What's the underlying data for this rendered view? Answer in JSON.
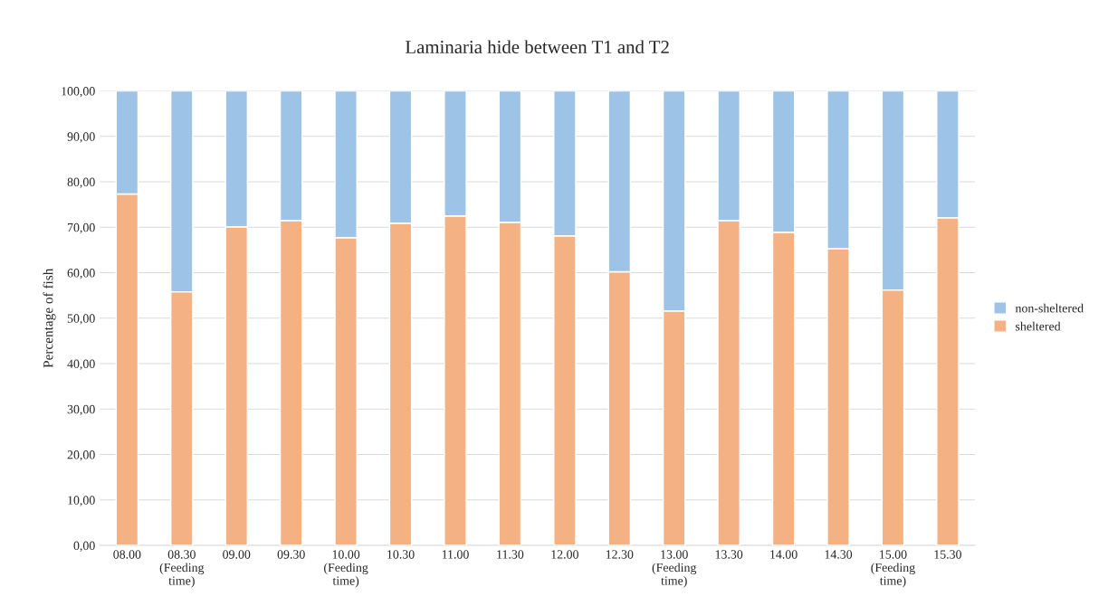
{
  "chart_data": {
    "type": "bar",
    "title": "Laminaria hide between T1 and T2",
    "ylabel": "Percentage of fish",
    "categories": [
      "08.00",
      "08.30\n(Feeding\ntime)",
      "09.00",
      "09.30",
      "10.00\n(Feeding\ntime)",
      "10.30",
      "11.00",
      "11.30",
      "12.00",
      "12.30",
      "13.00\n(Feeding\ntime)",
      "13.30",
      "14.00",
      "14.30",
      "15.00\n(Feeding\ntime)",
      "15.30"
    ],
    "series": [
      {
        "name": "sheltered",
        "color": "#f4b183",
        "values": [
          77.3,
          55.8,
          70.1,
          71.5,
          67.7,
          70.9,
          72.5,
          71.1,
          68.1,
          60.2,
          51.6,
          71.5,
          68.9,
          65.3,
          56.2,
          72.1
        ]
      },
      {
        "name": "non-sheltered",
        "color": "#9dc3e6",
        "values": [
          22.7,
          44.2,
          29.9,
          28.5,
          32.3,
          29.1,
          27.5,
          28.9,
          31.9,
          39.8,
          48.4,
          28.5,
          31.1,
          34.7,
          43.8,
          27.9
        ]
      }
    ],
    "stacked": true,
    "ylim": [
      0,
      100
    ],
    "yticks": [
      {
        "value": 0,
        "label": "0,00"
      },
      {
        "value": 10,
        "label": "10,00"
      },
      {
        "value": 20,
        "label": "20,00"
      },
      {
        "value": 30,
        "label": "30,00"
      },
      {
        "value": 40,
        "label": "40,00"
      },
      {
        "value": 50,
        "label": "50,00"
      },
      {
        "value": 60,
        "label": "60,00"
      },
      {
        "value": 70,
        "label": "70,00"
      },
      {
        "value": 80,
        "label": "80,00"
      },
      {
        "value": 90,
        "label": "90,00"
      },
      {
        "value": 100,
        "label": "100,00"
      }
    ],
    "grid": "y",
    "legend": "right"
  }
}
